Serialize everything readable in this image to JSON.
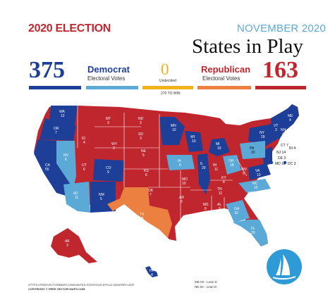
{
  "header": {
    "election": "2020 ELECTION",
    "month": "NOVEMBER 2020",
    "title": "States in Play"
  },
  "democrat": {
    "votes": "375",
    "name": "Democrat",
    "sub": "Electoral Votes"
  },
  "undecided": {
    "votes": "0",
    "sub": "Undecided"
  },
  "republican": {
    "votes": "163",
    "name": "Republican",
    "sub": "Electoral Votes"
  },
  "win_label": "270 TO WIN",
  "colors": {
    "dem_solid": "#1d3f97",
    "dem_lean": "#5ba9d6",
    "undecided": "#f0b31c",
    "rep_lean": "#ec8041",
    "rep_solid": "#c0262d"
  },
  "states": {
    "WA": "WA",
    "WA_v": "12",
    "OR": "OR",
    "OR_v": "7",
    "CA": "CA",
    "CA_v": "55",
    "NV": "NV",
    "NV_v": "6",
    "ID": "ID",
    "ID_v": "4",
    "MT": "MT",
    "MT_v": "3",
    "WY": "WY",
    "WY_v": "3",
    "UT": "UT",
    "UT_v": "6",
    "AZ": "AZ",
    "AZ_v": "11",
    "CO": "CO",
    "CO_v": "9",
    "NM": "NM",
    "NM_v": "5",
    "ND": "ND",
    "ND_v": "3",
    "SD": "SD",
    "SD_v": "3",
    "NE": "NE",
    "NE_v": "5",
    "KS": "KS",
    "KS_v": "6",
    "OK": "OK",
    "OK_v": "7",
    "TX": "TX",
    "TX_v": "38",
    "MN": "MN",
    "MN_v": "10",
    "IA": "IA",
    "IA_v": "6",
    "MO": "MO",
    "MO_v": "10",
    "AR": "AR",
    "AR_v": "6",
    "LA": "LA",
    "LA_v": "8",
    "WI": "WI",
    "WI_v": "10",
    "IL": "IL",
    "IL_v": "20",
    "MI": "MI",
    "MI_v": "16",
    "IN": "IN",
    "IN_v": "11",
    "OH": "OH",
    "OH_v": "18",
    "KY": "KY",
    "KY_v": "8",
    "TN": "TN",
    "TN_v": "11",
    "MS": "MS",
    "MS_v": "6",
    "AL": "AL",
    "AL_v": "9",
    "GA": "GA",
    "GA_v": "16",
    "FL": "FL",
    "FL_v": "29",
    "SC": "SC",
    "SC_v": "9",
    "NC": "NC",
    "NC_v": "15",
    "VA": "VA",
    "VA_v": "13",
    "WV": "WV",
    "WV_v": "5",
    "PA": "PA",
    "PA_v": "20",
    "NY": "NY",
    "NY_v": "29",
    "ME": "ME",
    "ME_v": "4",
    "NH": "NH",
    "NH_v": "4",
    "VT": "VT",
    "VT_v": "3",
    "MA": "MA",
    "MA_v": "11",
    "RI": "RI 4",
    "CT": "CT 7",
    "NJ": "NJ 14",
    "DE": "DE 3",
    "MD": "MD 10",
    "DC": "DC 3",
    "AK": "AK",
    "AK_v": "3",
    "HI": "HI",
    "HI_v": "4"
  },
  "notes": {
    "credit1": "HTTPS://FREEVECTORMAPS.COM/UNITED-STATES/US-EPS-02-0009?REF=ATR",
    "credit2": "COPYRIGHT © FREE VECTOR MAPS.COM",
    "me": "ME-02 - Lean D",
    "ne": "NE-02 - Lean D"
  }
}
